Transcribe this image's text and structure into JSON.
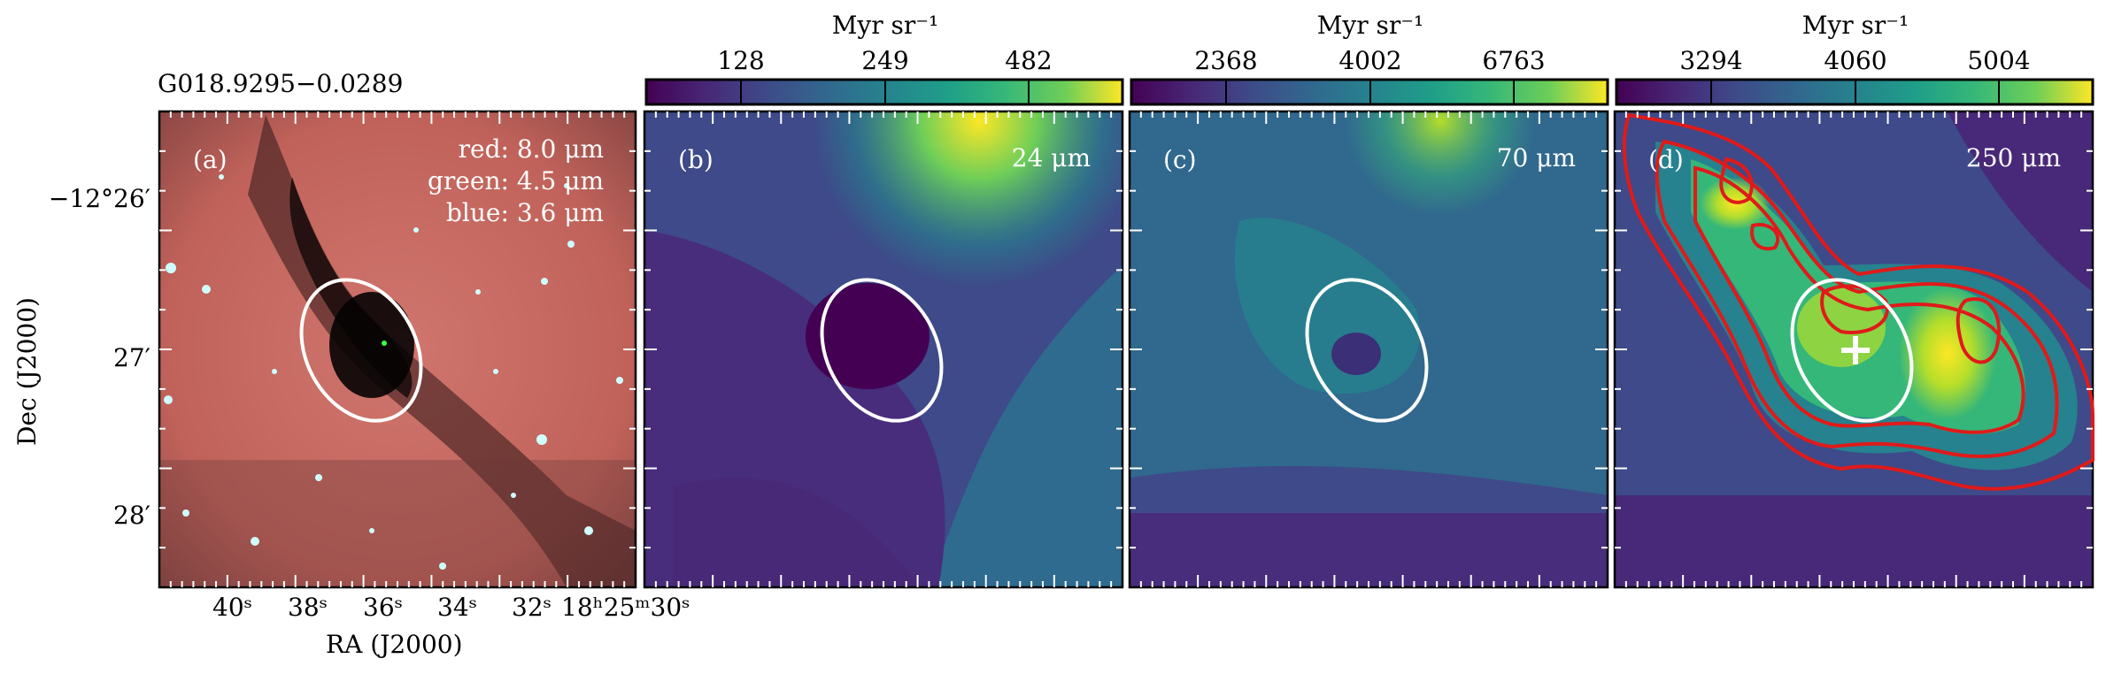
{
  "figure": {
    "source_title": "G018.9295−0.0289",
    "axis_x_label": "RA (J2000)",
    "axis_y_label": "Dec (J2000)",
    "dec_ticks": [
      "−12°26′",
      "27′",
      "28′"
    ],
    "ra_ticks": [
      "40ˢ",
      "38ˢ",
      "36ˢ",
      "34ˢ",
      "32ˢ",
      "18ʰ25ᵐ30ˢ"
    ]
  },
  "panels": [
    {
      "id": "a",
      "label": "(a)",
      "legend_lines": [
        "red: 8.0 μm",
        "green: 4.5 μm",
        "blue: 3.6 μm"
      ],
      "colormap": "rgb-composite"
    },
    {
      "id": "b",
      "label": "(b)",
      "band": "24 μm",
      "colorbar_unit": "Myr sr⁻¹",
      "colorbar_ticks": [
        "128",
        "249",
        "482"
      ],
      "colormap": "viridis"
    },
    {
      "id": "c",
      "label": "(c)",
      "band": "70 μm",
      "colorbar_unit": "Myr sr⁻¹",
      "colorbar_ticks": [
        "2368",
        "4002",
        "6763"
      ],
      "colormap": "viridis"
    },
    {
      "id": "d",
      "label": "(d)",
      "band": "250 μm",
      "colorbar_unit": "Myr sr⁻¹",
      "colorbar_ticks": [
        "3294",
        "4060",
        "5004"
      ],
      "colormap": "viridis",
      "contour_color": "#e01a1a"
    }
  ],
  "colors": {
    "ellipse": "#ffffff",
    "viridis_low": "#440154",
    "viridis_high": "#fde725"
  }
}
